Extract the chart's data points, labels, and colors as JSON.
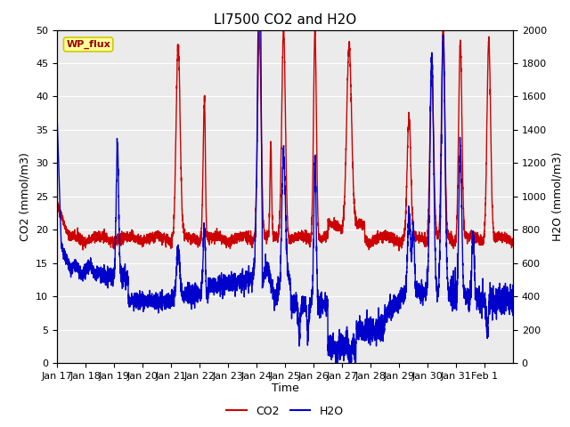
{
  "title": "LI7500 CO2 and H2O",
  "xlabel": "Time",
  "ylabel_left": "CO2 (mmol/m3)",
  "ylabel_right": "H2O (mmol/m3)",
  "ylim_left": [
    0,
    50
  ],
  "ylim_right": [
    0,
    2000
  ],
  "yticks_left": [
    0,
    5,
    10,
    15,
    20,
    25,
    30,
    35,
    40,
    45,
    50
  ],
  "yticks_right": [
    0,
    200,
    400,
    600,
    800,
    1000,
    1200,
    1400,
    1600,
    1800,
    2000
  ],
  "xtick_labels": [
    "Jan 17",
    "Jan 18",
    "Jan 19",
    "Jan 20",
    "Jan 21",
    "Jan 22",
    "Jan 23",
    "Jan 24",
    "Jan 25",
    "Jan 26",
    "Jan 27",
    "Jan 28",
    "Jan 29",
    "Jan 30",
    "Jan 31",
    "Feb 1"
  ],
  "co2_color": "#cc0000",
  "h2o_color": "#0000cc",
  "line_width": 1.0,
  "bg_color": "#ebebeb",
  "grid_color": "#ffffff",
  "legend_label_co2": "CO2",
  "legend_label_h2o": "H2O",
  "wp_flux_label": "WP_flux",
  "wp_flux_bg": "#ffff99",
  "wp_flux_text_color": "#990000",
  "wp_flux_border_color": "#cccc00",
  "title_fontsize": 11,
  "axis_label_fontsize": 9,
  "tick_fontsize": 8
}
